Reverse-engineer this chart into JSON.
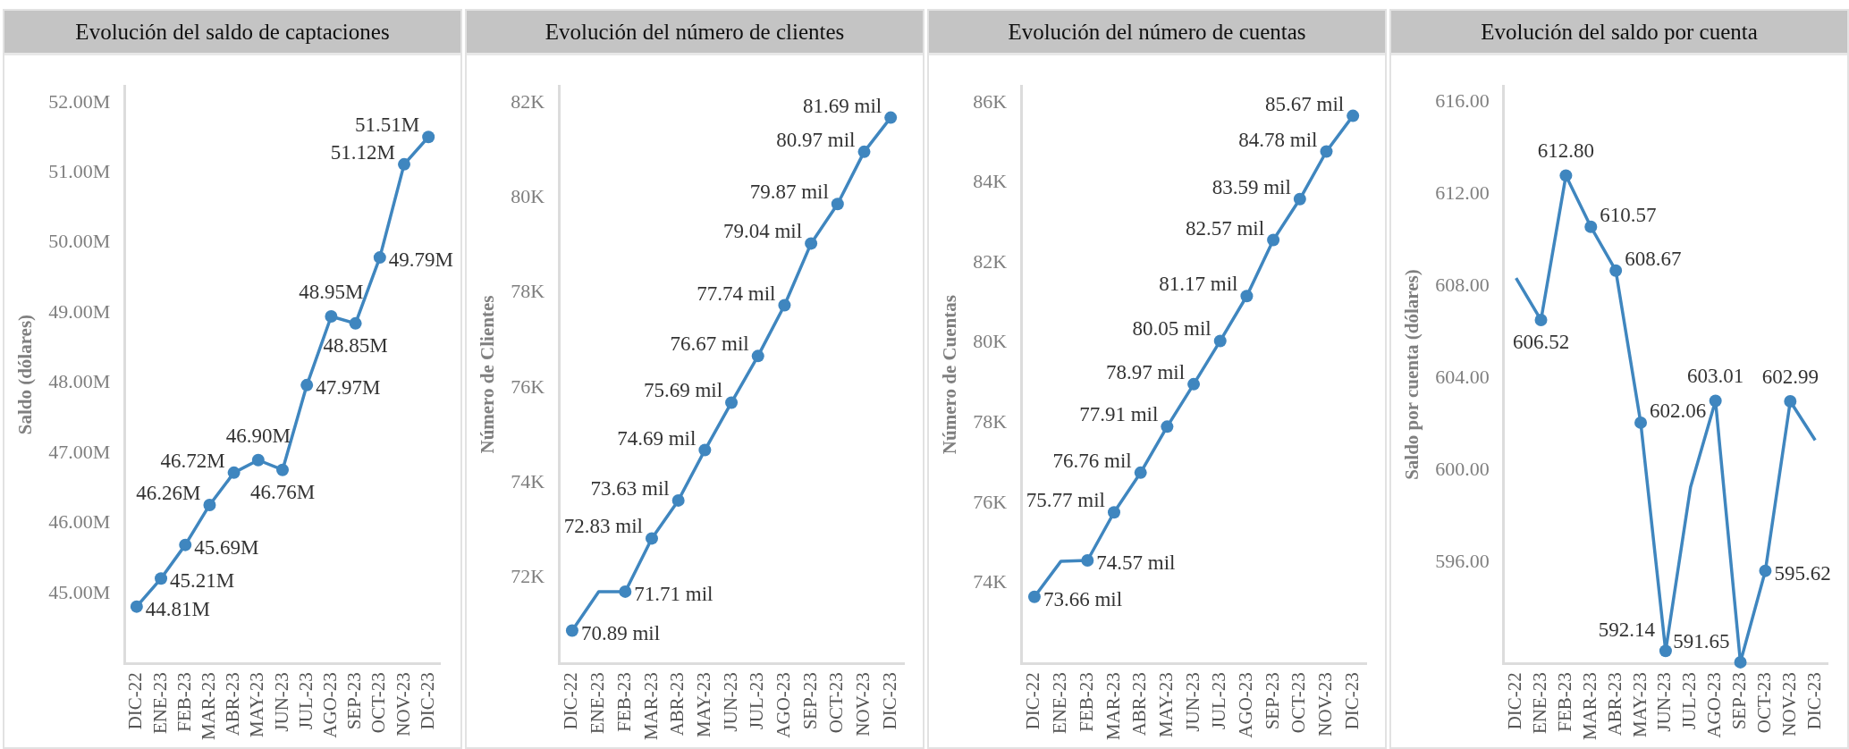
{
  "chart_data": [
    {
      "type": "line",
      "title": "Evolución del saldo de captaciones",
      "ylabel": "Saldo (dólares)",
      "categories": [
        "DIC-22",
        "ENE-23",
        "FEB-23",
        "MAR-23",
        "ABR-23",
        "MAY-23",
        "JUN-23",
        "JUL-23",
        "AGO-23",
        "SEP-23",
        "OCT-23",
        "NOV-23",
        "DIC-23"
      ],
      "series": [
        {
          "color": "#3f86bf",
          "values": [
            44810000,
            45210000,
            45690000,
            46260000,
            46720000,
            46900000,
            46760000,
            47970000,
            48950000,
            48850000,
            49790000,
            51120000,
            51510000
          ],
          "value_labels": [
            "44.81M",
            "45.21M",
            "45.69M",
            "46.26M",
            "46.72M",
            "46.90M",
            "46.76M",
            "47.97M",
            "48.95M",
            "48.85M",
            "49.79M",
            "51.12M",
            "51.51M"
          ]
        }
      ],
      "ylim": [
        44000000,
        52240000
      ],
      "yticks": [
        {
          "value": 45000000,
          "label": "45.00M"
        },
        {
          "value": 46000000,
          "label": "46.00M"
        },
        {
          "value": 47000000,
          "label": "47.00M"
        },
        {
          "value": 48000000,
          "label": "48.00M"
        },
        {
          "value": 49000000,
          "label": "49.00M"
        },
        {
          "value": 50000000,
          "label": "50.00M"
        },
        {
          "value": 51000000,
          "label": "51.00M"
        },
        {
          "value": 52000000,
          "label": "52.00M"
        }
      ],
      "grid": false,
      "legend": false,
      "marker": "circle",
      "line_style": "solid"
    },
    {
      "type": "line",
      "title": "Evolución del número de clientes",
      "ylabel": "Número de Clientes",
      "categories": [
        "DIC-22",
        "ENE-23",
        "FEB-23",
        "MAR-23",
        "ABR-23",
        "MAY-23",
        "JUN-23",
        "JUL-23",
        "AGO-23",
        "SEP-23",
        "OCT-23",
        "NOV-23",
        "DIC-23"
      ],
      "series": [
        {
          "color": "#3f86bf",
          "values": [
            70.89,
            71.71,
            71.71,
            72.83,
            73.63,
            74.69,
            75.69,
            76.67,
            77.74,
            79.04,
            79.87,
            80.97,
            81.69
          ],
          "value_labels": [
            "70.89 mil",
            null,
            "71.71 mil",
            "72.83 mil",
            "73.63 mil",
            "74.69 mil",
            "75.69 mil",
            "76.67 mil",
            "77.74 mil",
            "79.04 mil",
            "79.87 mil",
            "80.97 mil",
            "81.69 mil"
          ]
        }
      ],
      "ylim": [
        70.2,
        82.36
      ],
      "yticks": [
        {
          "value": 72,
          "label": "72K"
        },
        {
          "value": 74,
          "label": "74K"
        },
        {
          "value": 76,
          "label": "76K"
        },
        {
          "value": 78,
          "label": "78K"
        },
        {
          "value": 80,
          "label": "80K"
        },
        {
          "value": 82,
          "label": "82K"
        }
      ],
      "grid": false,
      "legend": false,
      "marker": "circle",
      "line_style": "solid"
    },
    {
      "type": "line",
      "title": "Evolución del número de cuentas",
      "ylabel": "Número de Cuentas",
      "categories": [
        "DIC-22",
        "ENE-23",
        "FEB-23",
        "MAR-23",
        "ABR-23",
        "MAY-23",
        "JUN-23",
        "JUL-23",
        "AGO-23",
        "SEP-23",
        "OCT-23",
        "NOV-23",
        "DIC-23"
      ],
      "series": [
        {
          "color": "#3f86bf",
          "values": [
            73.66,
            74.55,
            74.57,
            75.77,
            76.76,
            77.91,
            78.97,
            80.05,
            81.17,
            82.57,
            83.59,
            84.78,
            85.67
          ],
          "value_labels": [
            "73.66 mil",
            null,
            "74.57 mil",
            "75.77 mil",
            "76.76 mil",
            "77.91 mil",
            "78.97 mil",
            "80.05 mil",
            "81.17 mil",
            "82.57 mil",
            "83.59 mil",
            "84.78 mil",
            "85.67 mil"
          ]
        }
      ],
      "ylim": [
        72,
        86.42
      ],
      "yticks": [
        {
          "value": 74,
          "label": "74K"
        },
        {
          "value": 76,
          "label": "76K"
        },
        {
          "value": 78,
          "label": "78K"
        },
        {
          "value": 80,
          "label": "80K"
        },
        {
          "value": 82,
          "label": "82K"
        },
        {
          "value": 84,
          "label": "84K"
        },
        {
          "value": 86,
          "label": "86K"
        }
      ],
      "grid": false,
      "legend": false,
      "marker": "circle",
      "line_style": "solid"
    },
    {
      "type": "line",
      "title": "Evolución del saldo por cuenta",
      "ylabel": "Saldo por cuenta (dólares)",
      "categories": [
        "DIC-22",
        "ENE-23",
        "FEB-23",
        "MAR-23",
        "ABR-23",
        "MAY-23",
        "JUN-23",
        "JUL-23",
        "AGO-23",
        "SEP-23",
        "OCT-23",
        "NOV-23",
        "DIC-23"
      ],
      "series": [
        {
          "color": "#3f86bf",
          "values": [
            608.34,
            606.52,
            612.8,
            610.57,
            608.67,
            602.06,
            592.14,
            599.26,
            603.01,
            591.65,
            595.62,
            602.99,
            601.3
          ],
          "value_labels": [
            null,
            "606.52",
            "612.80",
            "610.57",
            "608.67",
            "602.06",
            "592.14",
            null,
            "603.01",
            "591.65",
            "595.62",
            "602.99",
            null
          ]
        }
      ],
      "ylim": [
        591.6,
        616.7
      ],
      "yticks": [
        {
          "value": 596,
          "label": "596.00"
        },
        {
          "value": 600,
          "label": "600.00"
        },
        {
          "value": 604,
          "label": "604.00"
        },
        {
          "value": 608,
          "label": "608.00"
        },
        {
          "value": 612,
          "label": "612.00"
        },
        {
          "value": 616,
          "label": "616.00"
        }
      ],
      "grid": false,
      "legend": false,
      "marker": "circle",
      "line_style": "solid"
    }
  ]
}
